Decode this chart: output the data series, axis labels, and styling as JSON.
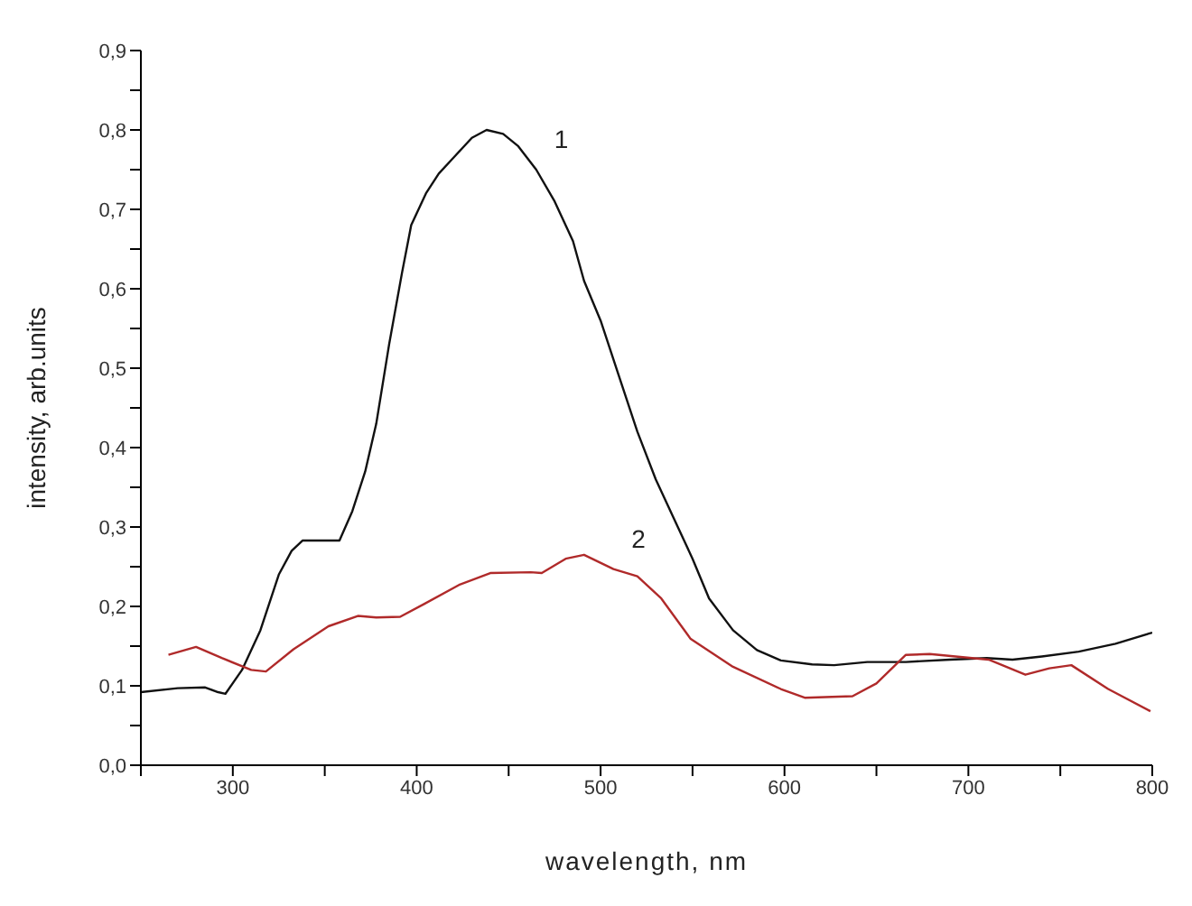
{
  "chart_data": {
    "type": "line",
    "xlabel": "wavelength, nm",
    "ylabel": "intensity, arb.units",
    "xlim": [
      250,
      800
    ],
    "xticks": [
      {
        "value": 250,
        "label": null
      },
      300,
      {
        "value": 350,
        "label": null
      },
      400,
      {
        "value": 450,
        "label": null
      },
      500,
      {
        "value": 550,
        "label": null
      },
      600,
      {
        "value": 650,
        "label": null
      },
      700,
      {
        "value": 750,
        "label": null
      },
      800
    ],
    "ylim": [
      0,
      0.9
    ],
    "yticks": [
      {
        "value": 0,
        "label": "0,0"
      },
      {
        "value": 0.05,
        "label": null
      },
      {
        "value": 0.1,
        "label": "0,1"
      },
      {
        "value": 0.15,
        "label": null
      },
      {
        "value": 0.2,
        "label": "0,2"
      },
      {
        "value": 0.25,
        "label": null
      },
      {
        "value": 0.3,
        "label": "0,3"
      },
      {
        "value": 0.35,
        "label": null
      },
      {
        "value": 0.4,
        "label": "0,4"
      },
      {
        "value": 0.45,
        "label": null
      },
      {
        "value": 0.5,
        "label": "0,5"
      },
      {
        "value": 0.55,
        "label": null
      },
      {
        "value": 0.6,
        "label": "0,6"
      },
      {
        "value": 0.65,
        "label": null
      },
      {
        "value": 0.7,
        "label": "0,7"
      },
      {
        "value": 0.75,
        "label": null
      },
      {
        "value": 0.8,
        "label": "0,8"
      },
      {
        "value": 0.85,
        "label": null
      },
      {
        "value": 0.9,
        "label": "0,9"
      }
    ],
    "grid": false,
    "legend": false,
    "marker": "none",
    "line_style": "solid",
    "series": [
      {
        "name": "1",
        "color": "#111111",
        "x": [
          250,
          270,
          285,
          292,
          296,
          305,
          315,
          325,
          332,
          338,
          358,
          365,
          372,
          378,
          385,
          392,
          397,
          405,
          412,
          420,
          430,
          438,
          447,
          455,
          465,
          475,
          485,
          491,
          500,
          510,
          520,
          530,
          540,
          550,
          559,
          572,
          585,
          598,
          615,
          627,
          645,
          666,
          690,
          710,
          724,
          740,
          760,
          780,
          800
        ],
        "values": [
          0.092,
          0.097,
          0.098,
          0.092,
          0.09,
          0.12,
          0.17,
          0.24,
          0.27,
          0.283,
          0.283,
          0.32,
          0.37,
          0.43,
          0.53,
          0.62,
          0.68,
          0.72,
          0.745,
          0.765,
          0.79,
          0.8,
          0.795,
          0.78,
          0.75,
          0.71,
          0.66,
          0.61,
          0.56,
          0.49,
          0.42,
          0.36,
          0.31,
          0.26,
          0.21,
          0.17,
          0.145,
          0.132,
          0.127,
          0.126,
          0.13,
          0.13,
          0.133,
          0.135,
          0.133,
          0.137,
          0.143,
          0.153,
          0.167
        ]
      },
      {
        "name": "2",
        "color": "#b02a2a",
        "x": [
          265,
          280,
          294,
          310,
          318,
          333,
          352,
          368,
          378,
          391,
          404,
          423,
          440,
          462,
          468,
          481,
          491,
          507,
          520,
          533,
          549,
          572,
          598,
          611,
          637,
          650,
          666,
          679,
          711,
          731,
          744,
          756,
          776,
          799
        ],
        "values": [
          0.139,
          0.149,
          0.135,
          0.12,
          0.118,
          0.146,
          0.175,
          0.188,
          0.186,
          0.187,
          0.203,
          0.227,
          0.242,
          0.243,
          0.242,
          0.26,
          0.265,
          0.247,
          0.238,
          0.21,
          0.159,
          0.124,
          0.096,
          0.085,
          0.087,
          0.103,
          0.139,
          0.14,
          0.133,
          0.114,
          0.122,
          0.126,
          0.096,
          0.068
        ]
      }
    ]
  }
}
